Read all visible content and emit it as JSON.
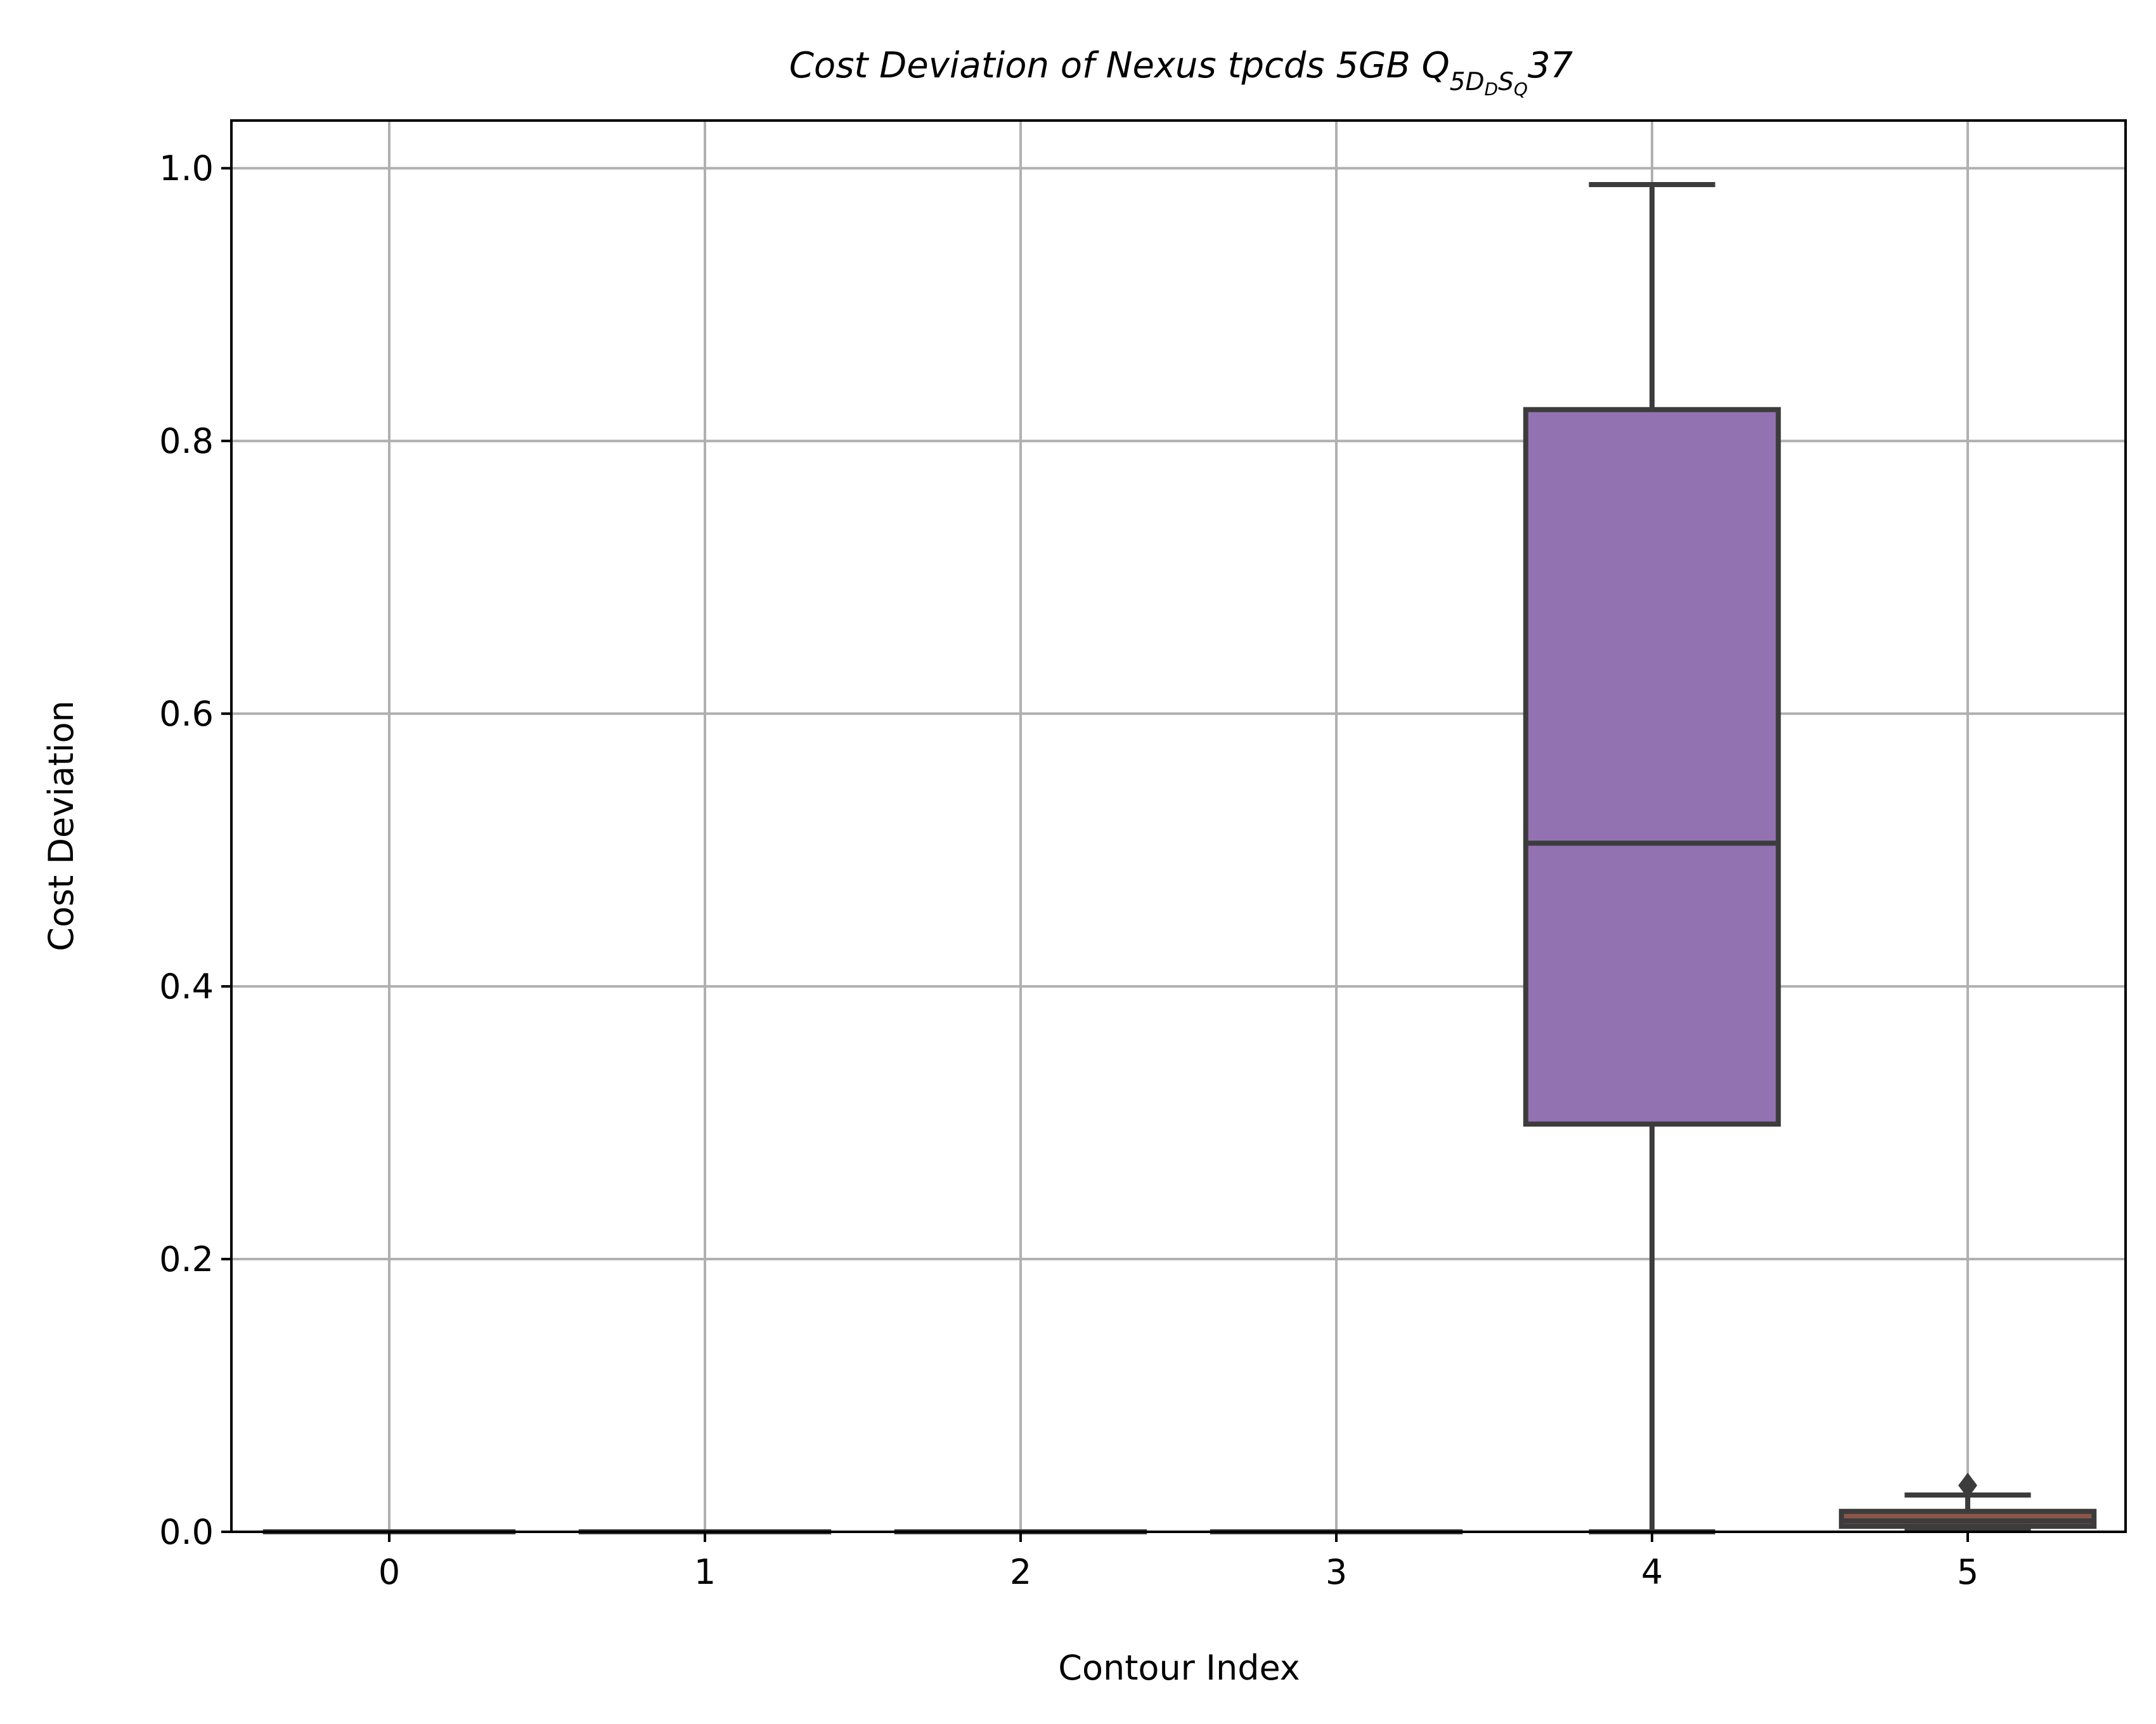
{
  "chart_data": {
    "type": "box",
    "title": "Cost Deviation of Nexus tpcds  5GB  Q",
    "title_subscript": "5DDSQ",
    "title_subscript_parts": [
      "5",
      "D",
      "D",
      "S",
      "Q"
    ],
    "title_suffix": "37",
    "xlabel": "Contour Index",
    "ylabel": "Cost Deviation",
    "categories": [
      "0",
      "1",
      "2",
      "3",
      "4",
      "5"
    ],
    "ylim": [
      0,
      1.035
    ],
    "yticks": [
      0,
      0.2,
      0.4,
      0.6,
      0.8,
      1.0
    ],
    "ytick_labels": [
      "0.0",
      "0.2",
      "0.4",
      "0.6",
      "0.8",
      "1.0"
    ],
    "grid": true,
    "boxes": [
      {
        "category": "0",
        "whisker_low": 0,
        "q1": 0,
        "median": 0,
        "q3": 0,
        "whisker_high": 0,
        "outliers": [],
        "color": "#1f77b4"
      },
      {
        "category": "1",
        "whisker_low": 0,
        "q1": 0,
        "median": 0,
        "q3": 0,
        "whisker_high": 0,
        "outliers": [],
        "color": "#ff7f0e"
      },
      {
        "category": "2",
        "whisker_low": 0,
        "q1": 0,
        "median": 0,
        "q3": 0,
        "whisker_high": 0,
        "outliers": [],
        "color": "#2ca02c"
      },
      {
        "category": "3",
        "whisker_low": 0,
        "q1": 0,
        "median": 0,
        "q3": 0,
        "whisker_high": 0,
        "outliers": [],
        "color": "#d62728"
      },
      {
        "category": "4",
        "whisker_low": 0.0,
        "q1": 0.299,
        "median": 0.505,
        "q3": 0.823,
        "whisker_high": 0.988,
        "outliers": [],
        "color": "#9372b2"
      },
      {
        "category": "5",
        "whisker_low": 0.001,
        "q1": 0.004,
        "median": 0.008,
        "q3": 0.015,
        "whisker_high": 0.027,
        "outliers": [
          0.034
        ],
        "color": "#8c564b"
      }
    ]
  },
  "colors": {
    "box_edge": "#3c3c3c",
    "grid": "#b0b0b0",
    "axes": "#000000"
  }
}
